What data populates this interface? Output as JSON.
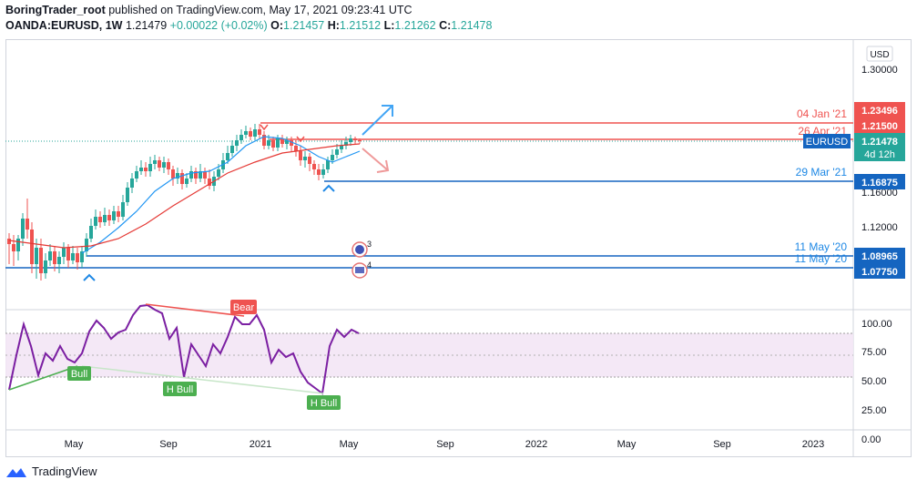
{
  "header": {
    "author": "BoringTrader_root",
    "published": "published on TradingView.com, May 17, 2021 09:23:41 UTC",
    "symbol": "OANDA:EURUSD, 1W",
    "last": "1.21479",
    "change": "+0.00022 (+0.02%)",
    "o_label": "O:",
    "o": "1.21457",
    "h_label": "H:",
    "h": "1.21512",
    "l_label": "L:",
    "l": "1.21262",
    "c_label": "C:",
    "c": "1.21478"
  },
  "currency": "USD",
  "price_axis": [
    {
      "label": "1.30000",
      "value": 1.3
    },
    {
      "label": "1.16000",
      "value": 1.16
    },
    {
      "label": "1.12000",
      "value": 1.12
    }
  ],
  "rsi_axis": [
    {
      "label": "100.00",
      "value": 100
    },
    {
      "label": "75.00",
      "value": 75
    },
    {
      "label": "50.00",
      "value": 50
    },
    {
      "label": "25.00",
      "value": 25
    },
    {
      "label": "0.00",
      "value": 0
    }
  ],
  "time_axis": [
    "May",
    "Sep",
    "2021",
    "May",
    "Sep",
    "2022",
    "May",
    "Sep",
    "2023"
  ],
  "levels": [
    {
      "label": "04 Jan '21",
      "value": "1.23496",
      "color": "#ef5350"
    },
    {
      "label": "26 Apr '21",
      "value": "1.21500",
      "color": "#ef5350"
    },
    {
      "label": "29 Mar '21",
      "value": "1.16875",
      "color": "#1565c0"
    },
    {
      "label": "11 May '20",
      "value": "1.08965",
      "color": "#1565c0"
    },
    {
      "label": "11 May '20",
      "value": "1.07750",
      "color": "#1565c0"
    }
  ],
  "current_price": {
    "symbol": "EURUSD",
    "value": "1.21478",
    "countdown": "4d 12h",
    "color": "#26a69a"
  },
  "annotations": {
    "bear": "Bear",
    "bull": "Bull",
    "h_bull_1": "H Bull",
    "h_bull_2": "H Bull",
    "event_3": "3",
    "event_4": "4"
  },
  "colors": {
    "up": "#26a69a",
    "down": "#ef5350",
    "rsi": "#7b1fa2",
    "sma_fast": "#2196f3",
    "sma_slow": "#e53935"
  },
  "footer": {
    "brand": "TradingView"
  }
}
